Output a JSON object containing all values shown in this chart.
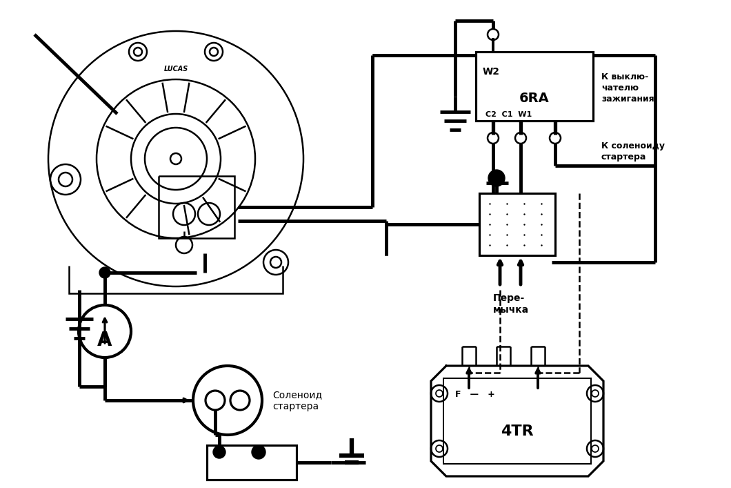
{
  "bg_color": "#ffffff",
  "lc": "#000000",
  "lw": 1.8,
  "tlw": 3.5,
  "fig_w": 10.6,
  "fig_h": 7.07,
  "texts": {
    "lucas": "LUCAS",
    "6RA": "6RA",
    "W2": "W2",
    "C2C1W1": "C2  C1  W1",
    "K_vykl": "К выклю-\nчателю\nзажигания",
    "K_solenoid": "К соленоиду\nстартера",
    "peremychka": "Пере-\nмычка",
    "solenoid": "Соленоид\nстартера",
    "4TR": "4TR",
    "Fmp": "F   —   +"
  }
}
